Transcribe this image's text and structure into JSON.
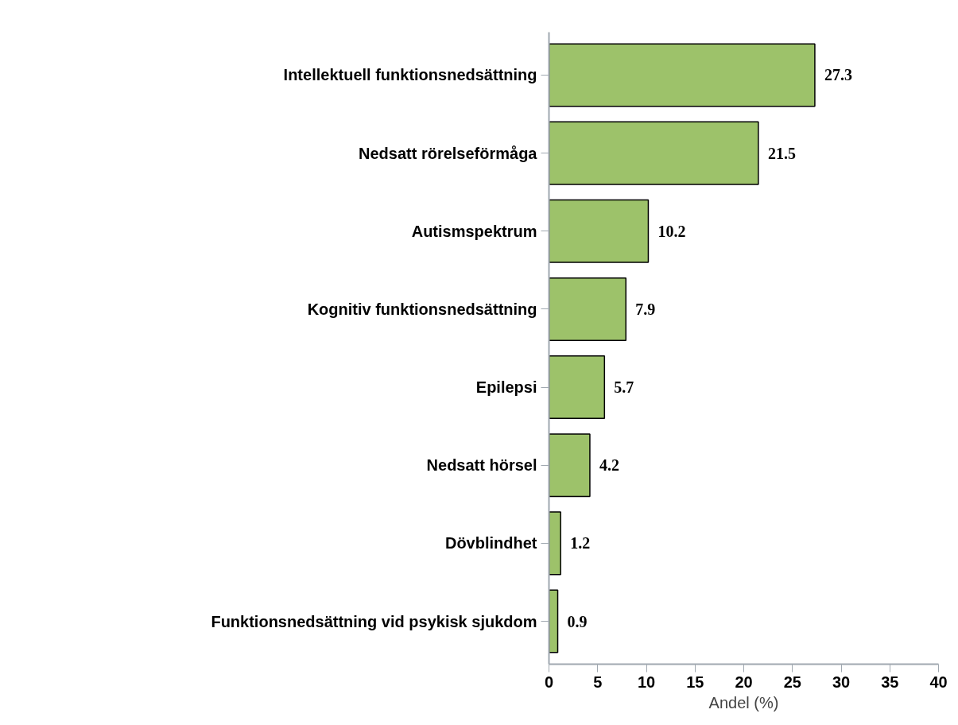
{
  "chart_data": {
    "type": "bar",
    "orientation": "horizontal",
    "xlabel": "Andel (%)",
    "categories": [
      "Intellektuell funktionsnedsättning",
      "Nedsatt rörelseförmåga",
      "Autismspektrum",
      "Kognitiv funktionsnedsättning",
      "Epilepsi",
      "Nedsatt hörsel",
      "Dövblindhet",
      "Funktionsnedsättning vid psykisk sjukdom"
    ],
    "values": [
      27.3,
      21.5,
      10.2,
      7.9,
      5.7,
      4.2,
      1.2,
      0.9
    ],
    "color": "#9dc26a",
    "xlim": [
      0,
      40
    ],
    "xticks": [
      0,
      5,
      10,
      15,
      20,
      25,
      30,
      35,
      40
    ],
    "grid": false,
    "data_labels": true
  }
}
